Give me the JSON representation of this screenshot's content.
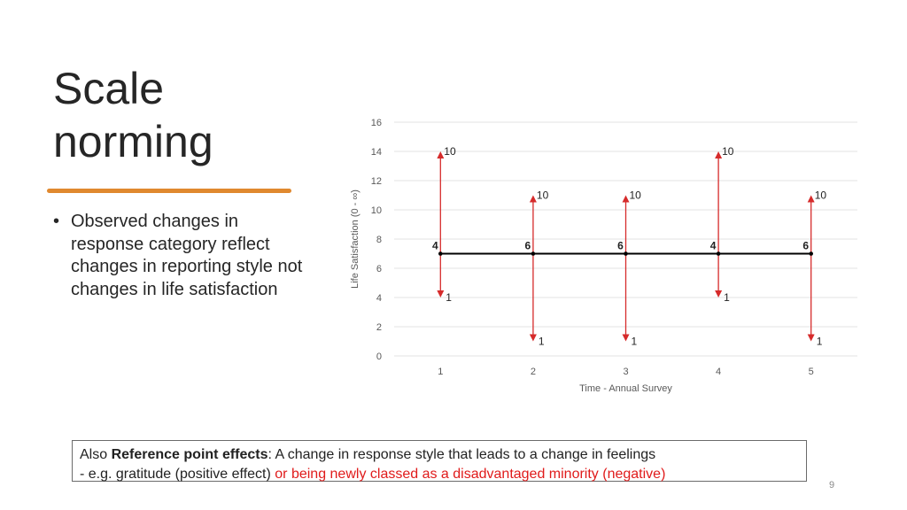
{
  "slide": {
    "title": "Scale norming",
    "bullets": [
      "Observed changes in response category reflect changes in reporting style not changes in life satisfaction"
    ],
    "note": {
      "prefix": "Also ",
      "bold": "Reference point effects",
      "after_bold": ": A change in response style that leads to a change in feelings",
      "line2_start": "- e.g. gratitude (positive effect) ",
      "line2_red": "or being newly classed as a disadvantaged minority (negative)"
    },
    "page_number": "9",
    "colors": {
      "accent": "#e0892f",
      "arrow": "#d62b2b",
      "line": "#000000",
      "grid": "#e3e3e3",
      "highlight": "#e01b1b"
    }
  },
  "chart_data": {
    "type": "line",
    "title": "",
    "xlabel": "Time - Annual Survey",
    "ylabel": "Life Satisfaction (0 - ∞)",
    "x": [
      1,
      2,
      3,
      4,
      5
    ],
    "ylim": [
      0,
      16
    ],
    "yticks": [
      0,
      2,
      4,
      6,
      8,
      10,
      12,
      14,
      16
    ],
    "grid": true,
    "series": [
      {
        "values": [
          7,
          7,
          7,
          7,
          7
        ],
        "labels": [
          "4",
          "6",
          "6",
          "4",
          "6"
        ]
      }
    ],
    "ranges": [
      {
        "x": 1,
        "low": 4,
        "high": 14,
        "low_label": "1",
        "high_label": "10"
      },
      {
        "x": 2,
        "low": 1,
        "high": 11,
        "low_label": "1",
        "high_label": "10"
      },
      {
        "x": 3,
        "low": 1,
        "high": 11,
        "low_label": "1",
        "high_label": "10"
      },
      {
        "x": 4,
        "low": 4,
        "high": 14,
        "low_label": "1",
        "high_label": "10"
      },
      {
        "x": 5,
        "low": 1,
        "high": 11,
        "low_label": "1",
        "high_label": "10"
      }
    ]
  }
}
